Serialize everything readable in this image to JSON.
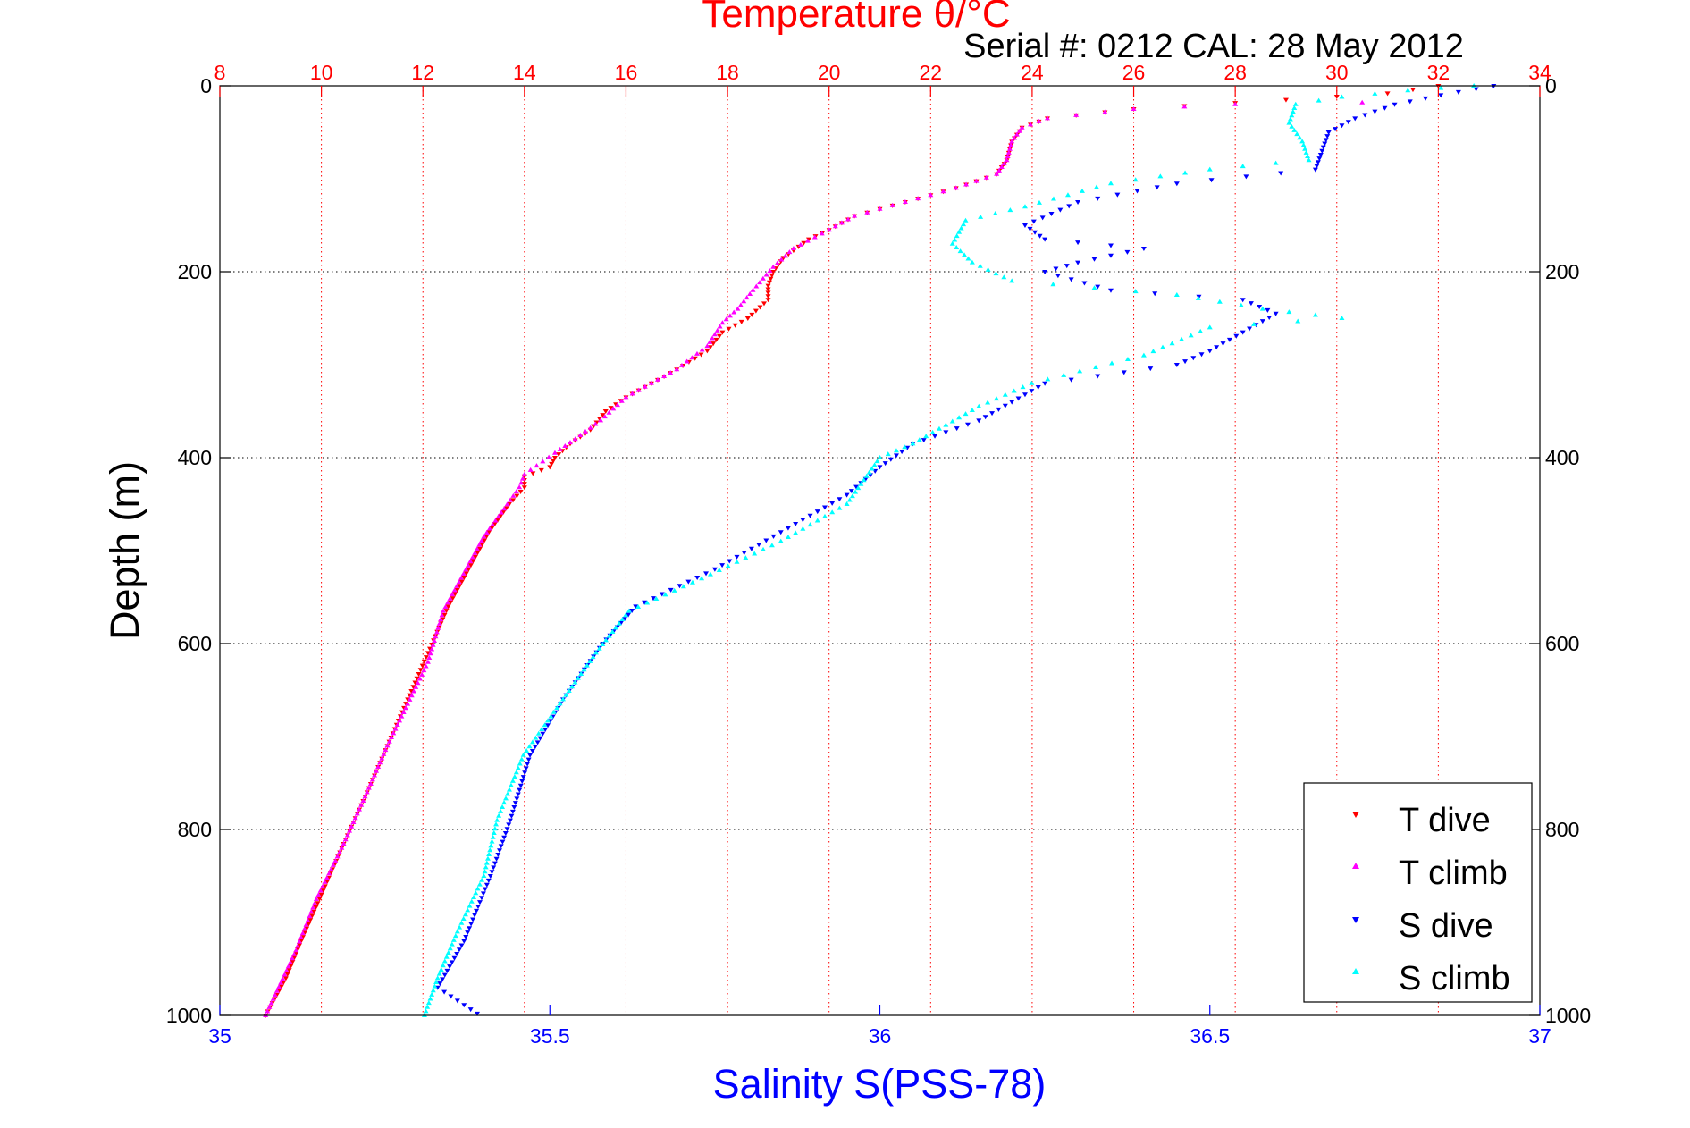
{
  "chart_data": {
    "type": "scatter",
    "title": "Temperature θ/°C",
    "subtitle": "Serial #: 0212  CAL: 28 May 2012",
    "xlabel": "Salinity S(PSS-78)",
    "ylabel": "Depth (m)",
    "colors": {
      "temperature_axis": "#ff0000",
      "salinity_axis": "#0000ff",
      "T_dive": "#ff0000",
      "T_climb": "#ff00ff",
      "S_dive": "#0000ff",
      "S_climb": "#00ffff"
    },
    "temperature_axis": {
      "range": [
        8,
        34
      ],
      "ticks": [
        8,
        10,
        12,
        14,
        16,
        18,
        20,
        22,
        24,
        26,
        28,
        30,
        32,
        34
      ]
    },
    "salinity_axis": {
      "range": [
        35,
        37
      ],
      "ticks": [
        35,
        35.5,
        36,
        36.5,
        37
      ],
      "tick_labels": [
        "35",
        "35.5",
        "36",
        "36.5",
        "37"
      ]
    },
    "depth_axis": {
      "range": [
        0,
        1000
      ],
      "reversed": true,
      "ticks": [
        0,
        200,
        400,
        600,
        800,
        1000
      ],
      "tick_labels": [
        "0",
        "200",
        "400",
        "600",
        "800",
        "1000"
      ]
    },
    "grid": "on",
    "legend_placement": "bottom-right",
    "legend": [
      "T dive",
      "T climb",
      "S dive",
      "S climb"
    ],
    "series": [
      {
        "name": "T dive",
        "quantity": "temperature",
        "marker": "triangle-down",
        "points": [
          [
            32.0,
            0
          ],
          [
            31.0,
            8
          ],
          [
            29.0,
            15
          ],
          [
            26.0,
            25
          ],
          [
            24.3,
            35
          ],
          [
            23.8,
            45
          ],
          [
            23.6,
            60
          ],
          [
            23.5,
            80
          ],
          [
            23.3,
            95
          ],
          [
            22.5,
            110
          ],
          [
            21.5,
            125
          ],
          [
            20.5,
            140
          ],
          [
            20.0,
            155
          ],
          [
            19.6,
            165
          ],
          [
            19.1,
            185
          ],
          [
            18.9,
            200
          ],
          [
            18.8,
            215
          ],
          [
            18.8,
            230
          ],
          [
            18.4,
            250
          ],
          [
            17.9,
            265
          ],
          [
            17.6,
            285
          ],
          [
            17.0,
            305
          ],
          [
            16.5,
            320
          ],
          [
            16.0,
            335
          ],
          [
            15.6,
            350
          ],
          [
            15.3,
            370
          ],
          [
            14.9,
            385
          ],
          [
            14.6,
            400
          ],
          [
            14.5,
            410
          ],
          [
            14.0,
            420
          ],
          [
            14.0,
            432
          ],
          [
            13.7,
            450
          ],
          [
            13.3,
            480
          ],
          [
            12.9,
            520
          ],
          [
            12.5,
            560
          ],
          [
            12.1,
            610
          ],
          [
            11.7,
            660
          ],
          [
            11.3,
            710
          ],
          [
            10.9,
            760
          ],
          [
            10.4,
            820
          ],
          [
            10.0,
            870
          ],
          [
            9.6,
            920
          ],
          [
            9.3,
            960
          ],
          [
            8.9,
            1000
          ]
        ]
      },
      {
        "name": "T climb",
        "quantity": "temperature",
        "marker": "triangle-up",
        "points": [
          [
            30.5,
            18
          ],
          [
            28.0,
            20
          ],
          [
            26.0,
            25
          ],
          [
            24.3,
            35
          ],
          [
            23.8,
            45
          ],
          [
            23.6,
            60
          ],
          [
            23.5,
            80
          ],
          [
            23.3,
            95
          ],
          [
            22.5,
            110
          ],
          [
            21.5,
            125
          ],
          [
            20.5,
            140
          ],
          [
            20.0,
            155
          ],
          [
            19.3,
            175
          ],
          [
            18.9,
            195
          ],
          [
            18.5,
            220
          ],
          [
            18.2,
            240
          ],
          [
            17.9,
            255
          ],
          [
            17.6,
            280
          ],
          [
            17.0,
            305
          ],
          [
            16.5,
            320
          ],
          [
            16.0,
            335
          ],
          [
            15.5,
            360
          ],
          [
            15.0,
            380
          ],
          [
            14.6,
            395
          ],
          [
            14.0,
            418
          ],
          [
            13.9,
            432
          ],
          [
            13.6,
            455
          ],
          [
            13.2,
            485
          ],
          [
            12.8,
            525
          ],
          [
            12.4,
            565
          ],
          [
            12.1,
            620
          ],
          [
            11.7,
            665
          ],
          [
            11.3,
            710
          ],
          [
            10.9,
            760
          ],
          [
            10.4,
            820
          ],
          [
            9.9,
            875
          ],
          [
            9.5,
            930
          ],
          [
            9.2,
            965
          ],
          [
            8.9,
            1000
          ]
        ]
      },
      {
        "name": "S dive",
        "quantity": "salinity",
        "marker": "triangle-down",
        "points": [
          [
            36.93,
            0
          ],
          [
            36.85,
            10
          ],
          [
            36.78,
            20
          ],
          [
            36.72,
            35
          ],
          [
            36.68,
            50
          ],
          [
            36.67,
            70
          ],
          [
            36.66,
            90
          ],
          [
            36.45,
            105
          ],
          [
            36.3,
            125
          ],
          [
            36.22,
            150
          ],
          [
            36.25,
            165
          ],
          [
            36.4,
            175
          ],
          [
            36.3,
            190
          ],
          [
            36.25,
            200
          ],
          [
            36.35,
            220
          ],
          [
            36.55,
            230
          ],
          [
            36.6,
            245
          ],
          [
            36.55,
            265
          ],
          [
            36.5,
            285
          ],
          [
            36.45,
            300
          ],
          [
            36.25,
            320
          ],
          [
            36.2,
            340
          ],
          [
            36.15,
            360
          ],
          [
            36.05,
            385
          ],
          [
            36.0,
            410
          ],
          [
            35.95,
            440
          ],
          [
            35.85,
            480
          ],
          [
            35.75,
            520
          ],
          [
            35.63,
            560
          ],
          [
            35.58,
            600
          ],
          [
            35.52,
            660
          ],
          [
            35.47,
            720
          ],
          [
            35.44,
            790
          ],
          [
            35.41,
            850
          ],
          [
            35.37,
            920
          ],
          [
            35.33,
            970
          ],
          [
            35.39,
            998
          ]
        ]
      },
      {
        "name": "S climb",
        "quantity": "salinity",
        "marker": "triangle-up",
        "points": [
          [
            36.9,
            0
          ],
          [
            36.8,
            5
          ],
          [
            36.7,
            12
          ],
          [
            36.63,
            20
          ],
          [
            36.62,
            40
          ],
          [
            36.64,
            60
          ],
          [
            36.65,
            80
          ],
          [
            36.5,
            90
          ],
          [
            36.35,
            105
          ],
          [
            36.22,
            130
          ],
          [
            36.13,
            145
          ],
          [
            36.11,
            170
          ],
          [
            36.14,
            190
          ],
          [
            36.2,
            210
          ],
          [
            36.45,
            225
          ],
          [
            36.58,
            240
          ],
          [
            36.7,
            250
          ],
          [
            36.5,
            260
          ],
          [
            36.4,
            290
          ],
          [
            36.23,
            320
          ],
          [
            36.15,
            345
          ],
          [
            36.1,
            365
          ],
          [
            36.05,
            385
          ],
          [
            36.0,
            400
          ],
          [
            35.98,
            420
          ],
          [
            35.95,
            450
          ],
          [
            35.85,
            490
          ],
          [
            35.73,
            530
          ],
          [
            35.62,
            565
          ],
          [
            35.57,
            610
          ],
          [
            35.52,
            660
          ],
          [
            35.46,
            720
          ],
          [
            35.42,
            790
          ],
          [
            35.4,
            850
          ],
          [
            35.36,
            910
          ],
          [
            35.33,
            960
          ],
          [
            35.31,
            1000
          ]
        ]
      }
    ]
  }
}
